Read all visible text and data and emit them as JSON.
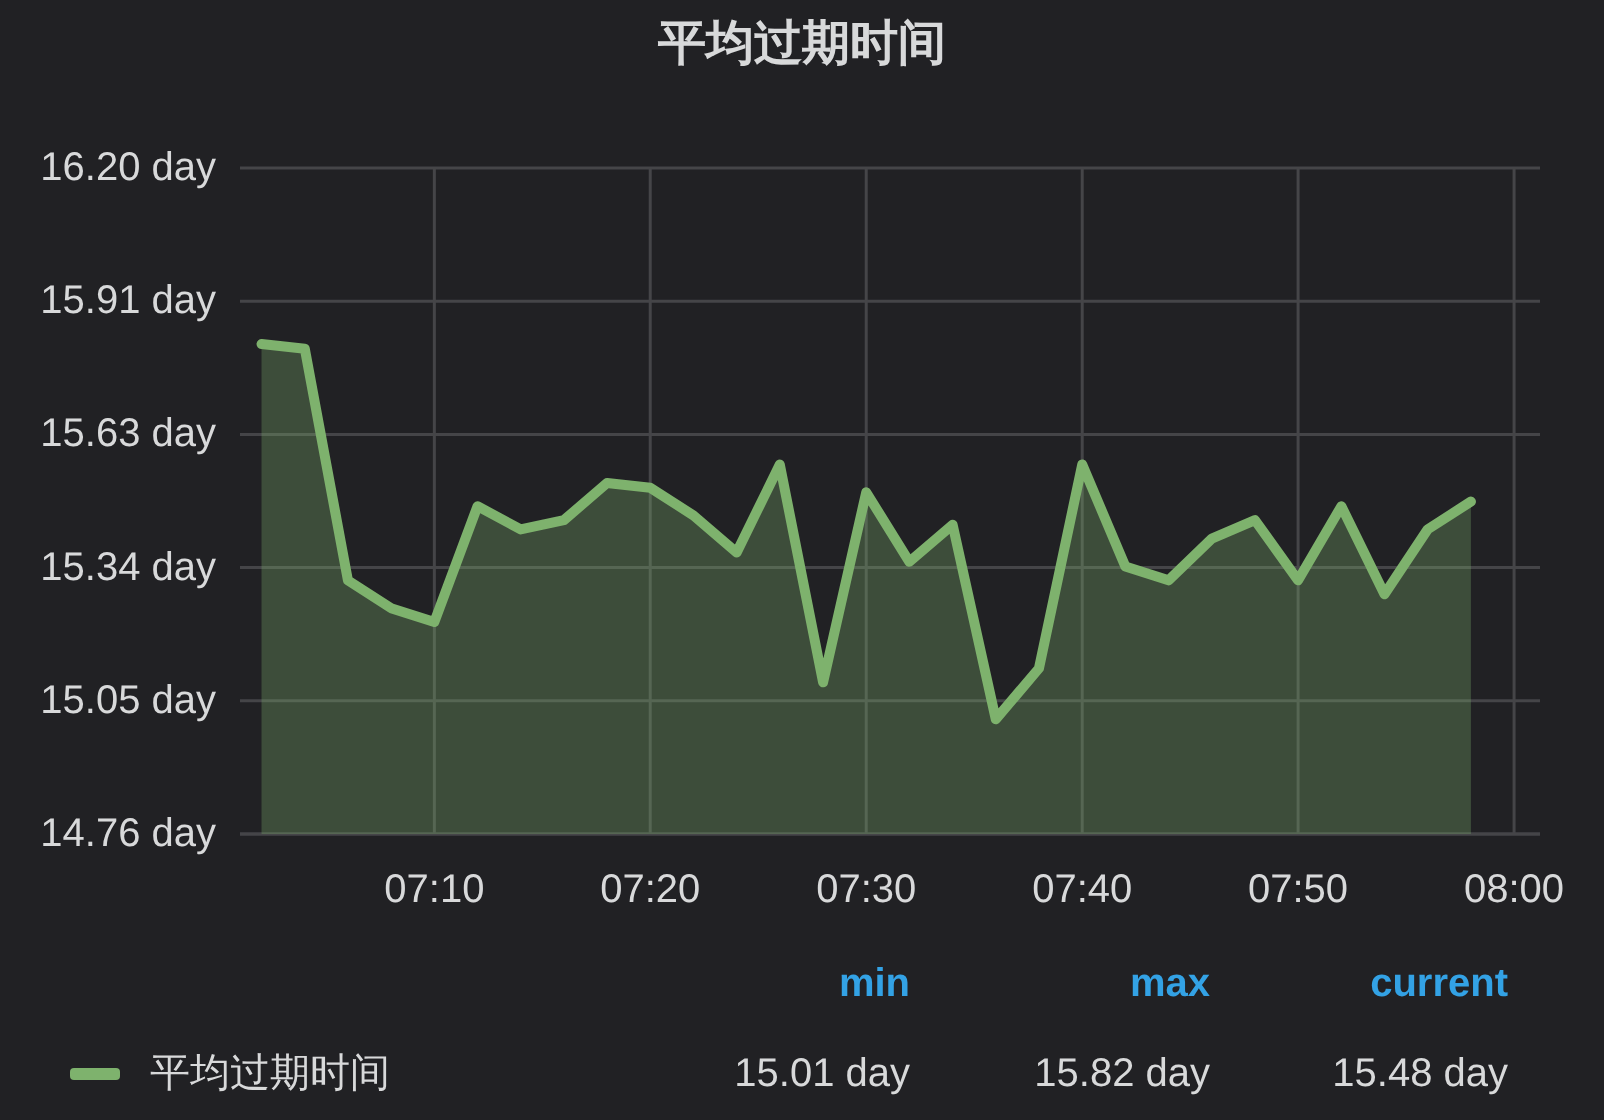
{
  "chart_data": {
    "type": "area",
    "title": "平均过期时间",
    "x": [
      7.0333,
      7.0667,
      7.1,
      7.1333,
      7.1667,
      7.2,
      7.2333,
      7.2667,
      7.3,
      7.3333,
      7.3667,
      7.4,
      7.4333,
      7.4667,
      7.5,
      7.5333,
      7.5667,
      7.6,
      7.6333,
      7.6667,
      7.7,
      7.7333,
      7.7667,
      7.8,
      7.8333,
      7.8667,
      7.9,
      7.9333,
      7.9667
    ],
    "series": [
      {
        "name": "平均过期时间",
        "color": "#7eb26d",
        "values": [
          15.82,
          15.81,
          15.31,
          15.25,
          15.22,
          15.47,
          15.42,
          15.44,
          15.52,
          15.51,
          15.45,
          15.37,
          15.56,
          15.09,
          15.5,
          15.35,
          15.43,
          15.01,
          15.12,
          15.56,
          15.34,
          15.31,
          15.4,
          15.44,
          15.31,
          15.47,
          15.28,
          15.42,
          15.48
        ]
      }
    ],
    "xlim": [
      7.0167,
      8.02
    ],
    "xticks": [
      {
        "value": 7.1667,
        "label": "07:10"
      },
      {
        "value": 7.3333,
        "label": "07:20"
      },
      {
        "value": 7.5,
        "label": "07:30"
      },
      {
        "value": 7.6667,
        "label": "07:40"
      },
      {
        "value": 7.8333,
        "label": "07:50"
      },
      {
        "value": 8,
        "label": "08:00"
      }
    ],
    "ylim": [
      14.7625,
      16.2
    ],
    "yticks": [
      {
        "value": 14.7625,
        "label": "14.76 day"
      },
      {
        "value": 15.05,
        "label": "15.05 day"
      },
      {
        "value": 15.3375,
        "label": "15.34 day"
      },
      {
        "value": 15.625,
        "label": "15.63 day"
      },
      {
        "value": 15.9125,
        "label": "15.91 day"
      },
      {
        "value": 16.2,
        "label": "16.20 day"
      }
    ],
    "grid": true,
    "legend": "bottom",
    "annotations": [
      "min",
      "max",
      "current",
      "15.01 day",
      "15.82 day",
      "15.48 day"
    ]
  }
}
